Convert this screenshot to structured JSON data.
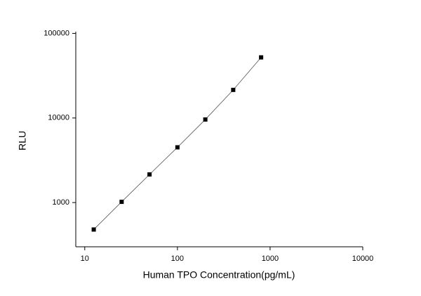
{
  "chart_data": {
    "type": "scatter",
    "x_label": "Human TPO Concentration(pg/mL)",
    "y_label": "RLU",
    "x": [
      12.5,
      25,
      50,
      100,
      200,
      400,
      800
    ],
    "values": [
      480,
      1020,
      2150,
      4500,
      9600,
      21500,
      52100
    ],
    "color": "#000000",
    "xlim": [
      8,
      10000
    ],
    "xticks": [
      10,
      100,
      1000,
      10000
    ],
    "xlog": true,
    "ylim": [
      300,
      105000
    ],
    "yticks": [
      1000,
      10000,
      100000
    ],
    "ylog": true,
    "fit_line": true,
    "grid": false
  }
}
